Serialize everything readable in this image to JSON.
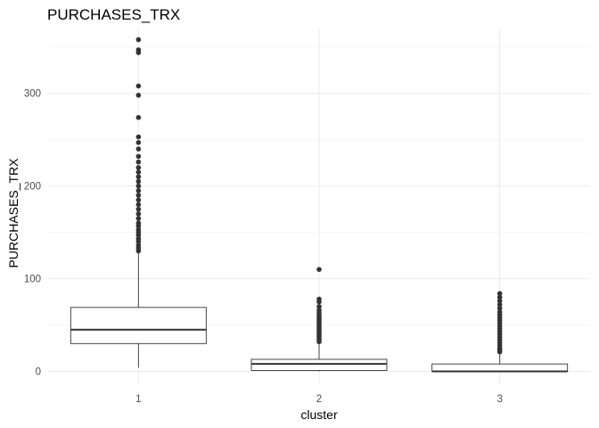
{
  "chart_data": {
    "type": "boxplot",
    "title": "PURCHASES_TRX",
    "xlabel": "cluster",
    "ylabel": "PURCHASES_TRX",
    "categories": [
      "1",
      "2",
      "3"
    ],
    "ylim": [
      -13,
      370
    ],
    "yticks": [
      0,
      100,
      200,
      300
    ],
    "grid": true,
    "boxes": [
      {
        "category": "1",
        "whisker_low": 4,
        "q1": 30,
        "median": 45,
        "q3": 69,
        "whisker_high": 128,
        "outliers": [
          130,
          133,
          136,
          140,
          143,
          147,
          150,
          153,
          157,
          160,
          165,
          170,
          175,
          180,
          185,
          190,
          195,
          200,
          205,
          210,
          215,
          220,
          226,
          232,
          240,
          247,
          253,
          274,
          298,
          308,
          344,
          347,
          358
        ]
      },
      {
        "category": "2",
        "whisker_low": 0,
        "q1": 1,
        "median": 8,
        "q3": 13,
        "whisker_high": 30,
        "outliers": [
          32,
          34,
          36,
          38,
          40,
          42,
          44,
          46,
          48,
          50,
          52,
          54,
          56,
          58,
          60,
          63,
          66,
          70,
          75,
          78,
          110
        ]
      },
      {
        "category": "3",
        "whisker_low": 0,
        "q1": 0,
        "median": 0,
        "q3": 8,
        "whisker_high": 19,
        "outliers": [
          21,
          23,
          25,
          28,
          31,
          34,
          37,
          40,
          43,
          46,
          49,
          52,
          55,
          58,
          61,
          64,
          68,
          72,
          76,
          80,
          84
        ]
      }
    ]
  }
}
